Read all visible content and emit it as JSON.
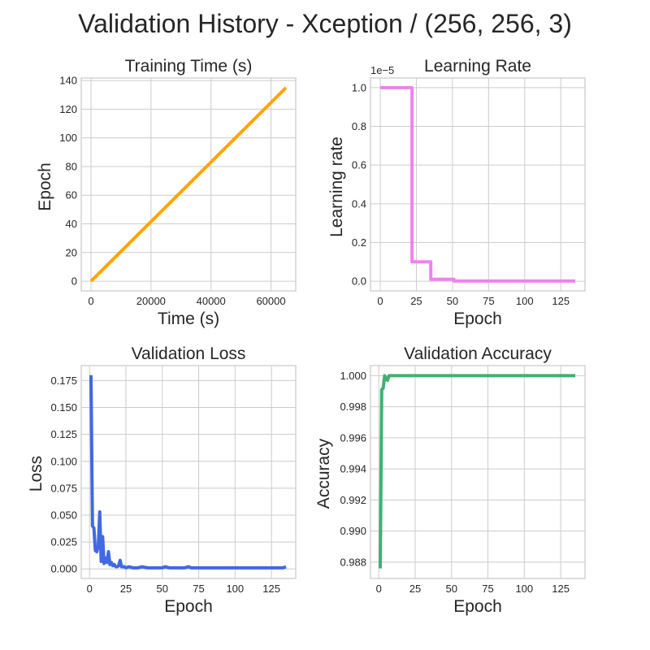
{
  "figure": {
    "suptitle": "Validation History - Xception / (256, 256, 3)"
  },
  "chart_data": [
    {
      "type": "line",
      "title": "Training Time (s)",
      "xlabel": "Time (s)",
      "ylabel": "Epoch",
      "color": "#ffa500",
      "xlim": [
        -3250,
        68250
      ],
      "ylim": [
        -6.75,
        141.75
      ],
      "xticks": [
        0,
        20000,
        40000,
        60000
      ],
      "yticks": [
        0,
        20,
        40,
        60,
        80,
        100,
        120,
        140
      ],
      "xtick_labels": [
        "0",
        "20000",
        "40000",
        "60000"
      ],
      "ytick_labels": [
        "0",
        "20",
        "40",
        "60",
        "80",
        "100",
        "120",
        "140"
      ],
      "series": [
        {
          "x": [
            0,
            65000
          ],
          "y": [
            0,
            135
          ]
        }
      ]
    },
    {
      "type": "line",
      "title": "Learning Rate",
      "xlabel": "Epoch",
      "ylabel": "Learning rate",
      "offset_text": "1e−5",
      "color": "#ee82ee",
      "xlim": [
        -6.75,
        141.75
      ],
      "ylim": [
        -0.05,
        1.05
      ],
      "xticks": [
        0,
        25,
        50,
        75,
        100,
        125
      ],
      "yticks": [
        0,
        0.2,
        0.4,
        0.6,
        0.8,
        1.0
      ],
      "xtick_labels": [
        "0",
        "25",
        "50",
        "75",
        "100",
        "125"
      ],
      "ytick_labels": [
        "0.0",
        "0.2",
        "0.4",
        "0.6",
        "0.8",
        "1.0"
      ],
      "series": [
        {
          "x": [
            0,
            22,
            22,
            35,
            35,
            51,
            51,
            135
          ],
          "y": [
            1.0,
            1.0,
            0.1,
            0.1,
            0.01,
            0.01,
            0.001,
            0.001
          ]
        }
      ]
    },
    {
      "type": "line",
      "title": "Validation Loss",
      "xlabel": "Epoch",
      "ylabel": "Loss",
      "color": "#4169e1",
      "xlim": [
        -5.7,
        141.7
      ],
      "ylim": [
        -0.0089,
        0.1889
      ],
      "xticks": [
        0,
        25,
        50,
        75,
        100,
        125
      ],
      "yticks": [
        0,
        0.025,
        0.05,
        0.075,
        0.1,
        0.125,
        0.15,
        0.175
      ],
      "xtick_labels": [
        "0",
        "25",
        "50",
        "75",
        "100",
        "125"
      ],
      "ytick_labels": [
        "0.000",
        "0.025",
        "0.050",
        "0.075",
        "0.100",
        "0.125",
        "0.150",
        "0.175"
      ],
      "series": [
        {
          "x": [
            1,
            2,
            3,
            4,
            5,
            6,
            7,
            8,
            9,
            10,
            11,
            12,
            13,
            14,
            15,
            16,
            17,
            18,
            19,
            20,
            21,
            22,
            23,
            24,
            25,
            27,
            30,
            33,
            36,
            40,
            45,
            50,
            52,
            55,
            60,
            65,
            68,
            70,
            75,
            80,
            85,
            90,
            95,
            100,
            105,
            110,
            115,
            120,
            125,
            130,
            133,
            135
          ],
          "y": [
            0.18,
            0.04,
            0.038,
            0.017,
            0.016,
            0.021,
            0.053,
            0.007,
            0.03,
            0.005,
            0.01,
            0.006,
            0.016,
            0.004,
            0.006,
            0.003,
            0.004,
            0.002,
            0.002,
            0.003,
            0.008,
            0.002,
            0.002,
            0.002,
            0.001,
            0.002,
            0.001,
            0.001,
            0.002,
            0.001,
            0.001,
            0.001,
            0.002,
            0.001,
            0.001,
            0.001,
            0.002,
            0.001,
            0.001,
            0.001,
            0.001,
            0.001,
            0.001,
            0.001,
            0.001,
            0.001,
            0.001,
            0.001,
            0.001,
            0.001,
            0.001,
            0.002
          ]
        }
      ]
    },
    {
      "type": "line",
      "title": "Validation Accuracy",
      "xlabel": "Epoch",
      "ylabel": "Accuracy",
      "color": "#3cb371",
      "xlim": [
        -5.7,
        141.7
      ],
      "ylim": [
        0.98695,
        1.00065
      ],
      "xticks": [
        0,
        25,
        50,
        75,
        100,
        125
      ],
      "yticks": [
        0.988,
        0.99,
        0.992,
        0.994,
        0.996,
        0.998,
        1.0
      ],
      "xtick_labels": [
        "0",
        "25",
        "50",
        "75",
        "100",
        "125"
      ],
      "ytick_labels": [
        "0.988",
        "0.990",
        "0.992",
        "0.994",
        "0.996",
        "0.998",
        "1.000"
      ],
      "series": [
        {
          "x": [
            1,
            2,
            3,
            4,
            5,
            6,
            7,
            8,
            10,
            15,
            20,
            22,
            25,
            30,
            50,
            75,
            100,
            125,
            135
          ],
          "y": [
            0.9876,
            0.9991,
            0.9992,
            1.0,
            0.9998,
            0.9997,
            1.0,
            1.0,
            1.0,
            1.0,
            1.0,
            1.0,
            1.0,
            1.0,
            1.0,
            1.0,
            1.0,
            1.0,
            1.0
          ]
        }
      ]
    }
  ]
}
